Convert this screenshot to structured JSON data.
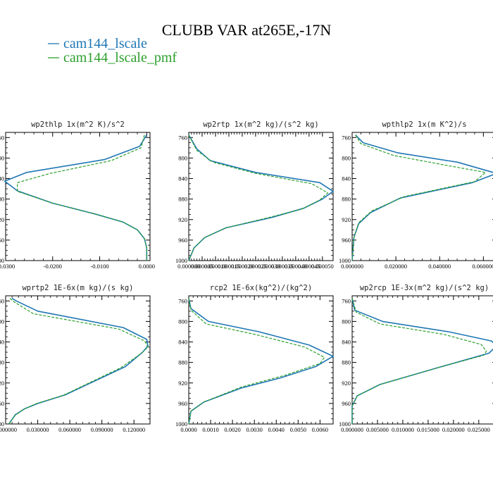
{
  "title": "CLUBB VAR at265E,-17N",
  "colors": {
    "series1": "#1f77b4",
    "series2": "#2ca02c"
  },
  "legend": [
    {
      "label": "cam144_lscale",
      "style": "solid"
    },
    {
      "label": "cam144_lscale_pmf",
      "style": "dashed"
    }
  ],
  "chart_data": [
    {
      "type": "line",
      "title": "wp2thlp   1x(m^2 K)/s^2",
      "xlim": [
        -0.03,
        0.0007
      ],
      "ylim": [
        1000,
        750
      ],
      "x_ticks": [
        -0.03,
        -0.02,
        -0.01,
        0.0
      ],
      "x_tick_labels": [
        "-0.0300",
        "-0.0200",
        "-0.0100",
        "0.0000"
      ],
      "y_ticks": [
        760,
        800,
        840,
        880,
        920,
        960,
        1000
      ],
      "series": [
        {
          "name": "cam144_lscale",
          "points": [
            [
              0.0,
              755
            ],
            [
              -0.0015,
              777
            ],
            [
              -0.009,
              803
            ],
            [
              -0.0255,
              828
            ],
            [
              -0.0302,
              845
            ],
            [
              -0.0275,
              864
            ],
            [
              -0.02,
              888
            ],
            [
              -0.011,
              909
            ],
            [
              -0.005,
              925
            ],
            [
              -0.002,
              940
            ],
            [
              -0.0005,
              957
            ],
            [
              0.0,
              975
            ],
            [
              0.0,
              1000
            ]
          ]
        },
        {
          "name": "cam144_lscale_pmf",
          "points": [
            [
              -0.0005,
              755
            ],
            [
              -0.0012,
              780
            ],
            [
              -0.0075,
              805
            ],
            [
              -0.0205,
              830
            ],
            [
              -0.0275,
              848
            ],
            [
              -0.0275,
              865
            ],
            [
              -0.02,
              888
            ],
            [
              -0.011,
              909
            ],
            [
              -0.005,
              925
            ],
            [
              -0.002,
              940
            ],
            [
              -0.0005,
              957
            ],
            [
              0.0,
              975
            ],
            [
              0.0,
              1000
            ]
          ]
        }
      ]
    },
    {
      "type": "line",
      "title": "wp2rtp   1x(m^2 kg)/(s^2 kg)",
      "xlim": [
        0.0,
        5.4e-05
      ],
      "ylim": [
        1000,
        750
      ],
      "x_ticks": [
        0.0,
        5e-06,
        1e-05,
        1.5e-05,
        2e-05,
        2.5e-05,
        3e-05,
        3.5e-05,
        4e-05,
        4.5e-05,
        5e-05
      ],
      "x_tick_labels": [
        "0.000000",
        "0.000005",
        "0.000010",
        "0.000015",
        "0.000020",
        "0.000025",
        "0.000030",
        "0.000035",
        "0.000040",
        "0.000045",
        "0.000050"
      ],
      "y_ticks": [
        760,
        800,
        840,
        880,
        920,
        960,
        1000
      ],
      "series": [
        {
          "name": "cam144_lscale",
          "points": [
            [
              0.0,
              755
            ],
            [
              3e-06,
              782
            ],
            [
              8e-06,
              805
            ],
            [
              2.5e-05,
              828
            ],
            [
              4.9e-05,
              848
            ],
            [
              5.4e-05,
              865
            ],
            [
              5e-05,
              880
            ],
            [
              4.3e-05,
              898
            ],
            [
              3.1e-05,
              916
            ],
            [
              1.4e-05,
              936
            ],
            [
              6e-06,
              955
            ],
            [
              2e-06,
              975
            ],
            [
              0.0,
              1000
            ]
          ]
        },
        {
          "name": "cam144_lscale_pmf",
          "points": [
            [
              0.0,
              755
            ],
            [
              3e-06,
              785
            ],
            [
              9e-06,
              808
            ],
            [
              2.5e-05,
              830
            ],
            [
              4.6e-05,
              850
            ],
            [
              5.2e-05,
              868
            ],
            [
              4.9e-05,
              882
            ],
            [
              4.2e-05,
              900
            ],
            [
              3e-05,
              916
            ],
            [
              1.4e-05,
              936
            ],
            [
              6e-06,
              955
            ],
            [
              2e-06,
              975
            ],
            [
              0.0,
              1000
            ]
          ]
        }
      ]
    },
    {
      "type": "line",
      "title": "wpthlp2   1x(m K^2)/s",
      "xlim": [
        0.0,
        0.066
      ],
      "ylim": [
        1000,
        750
      ],
      "x_ticks": [
        0.0,
        0.02,
        0.04,
        0.06
      ],
      "x_tick_labels": [
        "0.000000",
        "0.020000",
        "0.040000",
        "0.060000"
      ],
      "y_ticks": [
        760,
        800,
        840,
        880,
        920,
        960,
        1000
      ],
      "series": [
        {
          "name": "cam144_lscale",
          "points": [
            [
              0.0015,
              755
            ],
            [
              0.005,
              770
            ],
            [
              0.021,
              790
            ],
            [
              0.048,
              808
            ],
            [
              0.066,
              830
            ],
            [
              0.055,
              848
            ],
            [
              0.022,
              878
            ],
            [
              0.0085,
              906
            ],
            [
              0.003,
              928
            ],
            [
              0.0008,
              955
            ],
            [
              0.0,
              1000
            ]
          ]
        },
        {
          "name": "cam144_lscale_pmf",
          "points": [
            [
              0.0015,
              755
            ],
            [
              0.004,
              772
            ],
            [
              0.019,
              795
            ],
            [
              0.044,
              815
            ],
            [
              0.061,
              828
            ],
            [
              0.056,
              846
            ],
            [
              0.024,
              875
            ],
            [
              0.009,
              903
            ],
            [
              0.003,
              926
            ],
            [
              0.0008,
              955
            ],
            [
              0.0,
              1000
            ]
          ]
        }
      ]
    },
    {
      "type": "line",
      "title": "wprtp2   1E-6x(m kg)/(s kg)",
      "xlim": [
        0.0,
        0.135
      ],
      "ylim": [
        1000,
        750
      ],
      "x_ticks": [
        0.0,
        0.03,
        0.06,
        0.09,
        0.12
      ],
      "x_tick_labels": [
        "0.000000",
        "0.030000",
        "0.060000",
        "0.090000",
        "0.120000"
      ],
      "y_ticks": [
        760,
        800,
        840,
        880,
        920,
        960,
        1000
      ],
      "series": [
        {
          "name": "cam144_lscale",
          "points": [
            [
              0.006,
              755
            ],
            [
              0.01,
              760
            ],
            [
              0.03,
              780
            ],
            [
              0.11,
              812
            ],
            [
              0.132,
              835
            ],
            [
              0.133,
              848
            ],
            [
              0.128,
              860
            ],
            [
              0.112,
              888
            ],
            [
              0.056,
              943
            ],
            [
              0.03,
              960
            ],
            [
              0.018,
              970
            ],
            [
              0.009,
              982
            ],
            [
              0.003,
              1000
            ]
          ]
        },
        {
          "name": "cam144_lscale_pmf",
          "points": [
            [
              0.004,
              755
            ],
            [
              0.008,
              762
            ],
            [
              0.026,
              785
            ],
            [
              0.106,
              815
            ],
            [
              0.13,
              838
            ],
            [
              0.133,
              850
            ],
            [
              0.127,
              862
            ],
            [
              0.108,
              890
            ],
            [
              0.054,
              944
            ],
            [
              0.029,
              960
            ],
            [
              0.017,
              971
            ],
            [
              0.009,
              983
            ],
            [
              0.003,
              1000
            ]
          ]
        }
      ]
    },
    {
      "type": "line",
      "title": "rcp2   1E-6x(kg^2)/(kg^2)",
      "xlim": [
        0.0,
        0.0066
      ],
      "ylim": [
        1000,
        750
      ],
      "x_ticks": [
        0.0,
        0.001,
        0.002,
        0.003,
        0.004,
        0.005,
        0.006
      ],
      "x_tick_labels": [
        "0.0000",
        "0.0010",
        "0.0020",
        "0.0030",
        "0.0040",
        "0.0050",
        "0.0060"
      ],
      "y_ticks": [
        760,
        800,
        840,
        880,
        920,
        960,
        1000
      ],
      "series": [
        {
          "name": "cam144_lscale",
          "points": [
            [
              0.0,
              755
            ],
            [
              0.0001,
              775
            ],
            [
              0.0009,
              800
            ],
            [
              0.0032,
              820
            ],
            [
              0.0055,
              846
            ],
            [
              0.0066,
              868
            ],
            [
              0.0058,
              888
            ],
            [
              0.0042,
              910
            ],
            [
              0.0024,
              930
            ],
            [
              0.0007,
              957
            ],
            [
              0.0001,
              975
            ],
            [
              0.0,
              1000
            ]
          ]
        },
        {
          "name": "cam144_lscale_pmf",
          "points": [
            [
              0.0,
              755
            ],
            [
              0.0001,
              778
            ],
            [
              0.0008,
              805
            ],
            [
              0.0031,
              826
            ],
            [
              0.0053,
              850
            ],
            [
              0.0062,
              870
            ],
            [
              0.006,
              882
            ],
            [
              0.0044,
              905
            ],
            [
              0.0024,
              928
            ],
            [
              0.0007,
              957
            ],
            [
              0.0001,
              975
            ],
            [
              0.0,
              1000
            ]
          ]
        }
      ]
    },
    {
      "type": "line",
      "title": "wp2rcp   1E-3x(m^2 kg)/(s^2 kg)",
      "xlim": [
        0.0,
        0.0285
      ],
      "ylim": [
        1000,
        750
      ],
      "x_ticks": [
        0.0,
        0.005,
        0.01,
        0.015,
        0.02,
        0.025
      ],
      "x_tick_labels": [
        "0.000000",
        "0.005000",
        "0.010000",
        "0.015000",
        "0.020000",
        "0.025000"
      ],
      "y_ticks": [
        760,
        800,
        840,
        880,
        920,
        960,
        1000
      ],
      "series": [
        {
          "name": "cam144_lscale",
          "points": [
            [
              0.0,
              755
            ],
            [
              0.0005,
              778
            ],
            [
              0.006,
              800
            ],
            [
              0.019,
              820
            ],
            [
              0.0275,
              838
            ],
            [
              0.0285,
              848
            ],
            [
              0.027,
              862
            ],
            [
              0.017,
              890
            ],
            [
              0.0055,
              923
            ],
            [
              0.001,
              945
            ],
            [
              0.0,
              965
            ],
            [
              0.0,
              1000
            ]
          ]
        },
        {
          "name": "cam144_lscale_pmf",
          "points": [
            [
              0.0,
              755
            ],
            [
              0.0008,
              782
            ],
            [
              0.0055,
              805
            ],
            [
              0.018,
              825
            ],
            [
              0.0255,
              845
            ],
            [
              0.0265,
              858
            ],
            [
              0.026,
              866
            ],
            [
              0.017,
              890
            ],
            [
              0.0055,
              923
            ],
            [
              0.001,
              945
            ],
            [
              0.0,
              965
            ],
            [
              0.0,
              1000
            ]
          ]
        }
      ]
    }
  ]
}
